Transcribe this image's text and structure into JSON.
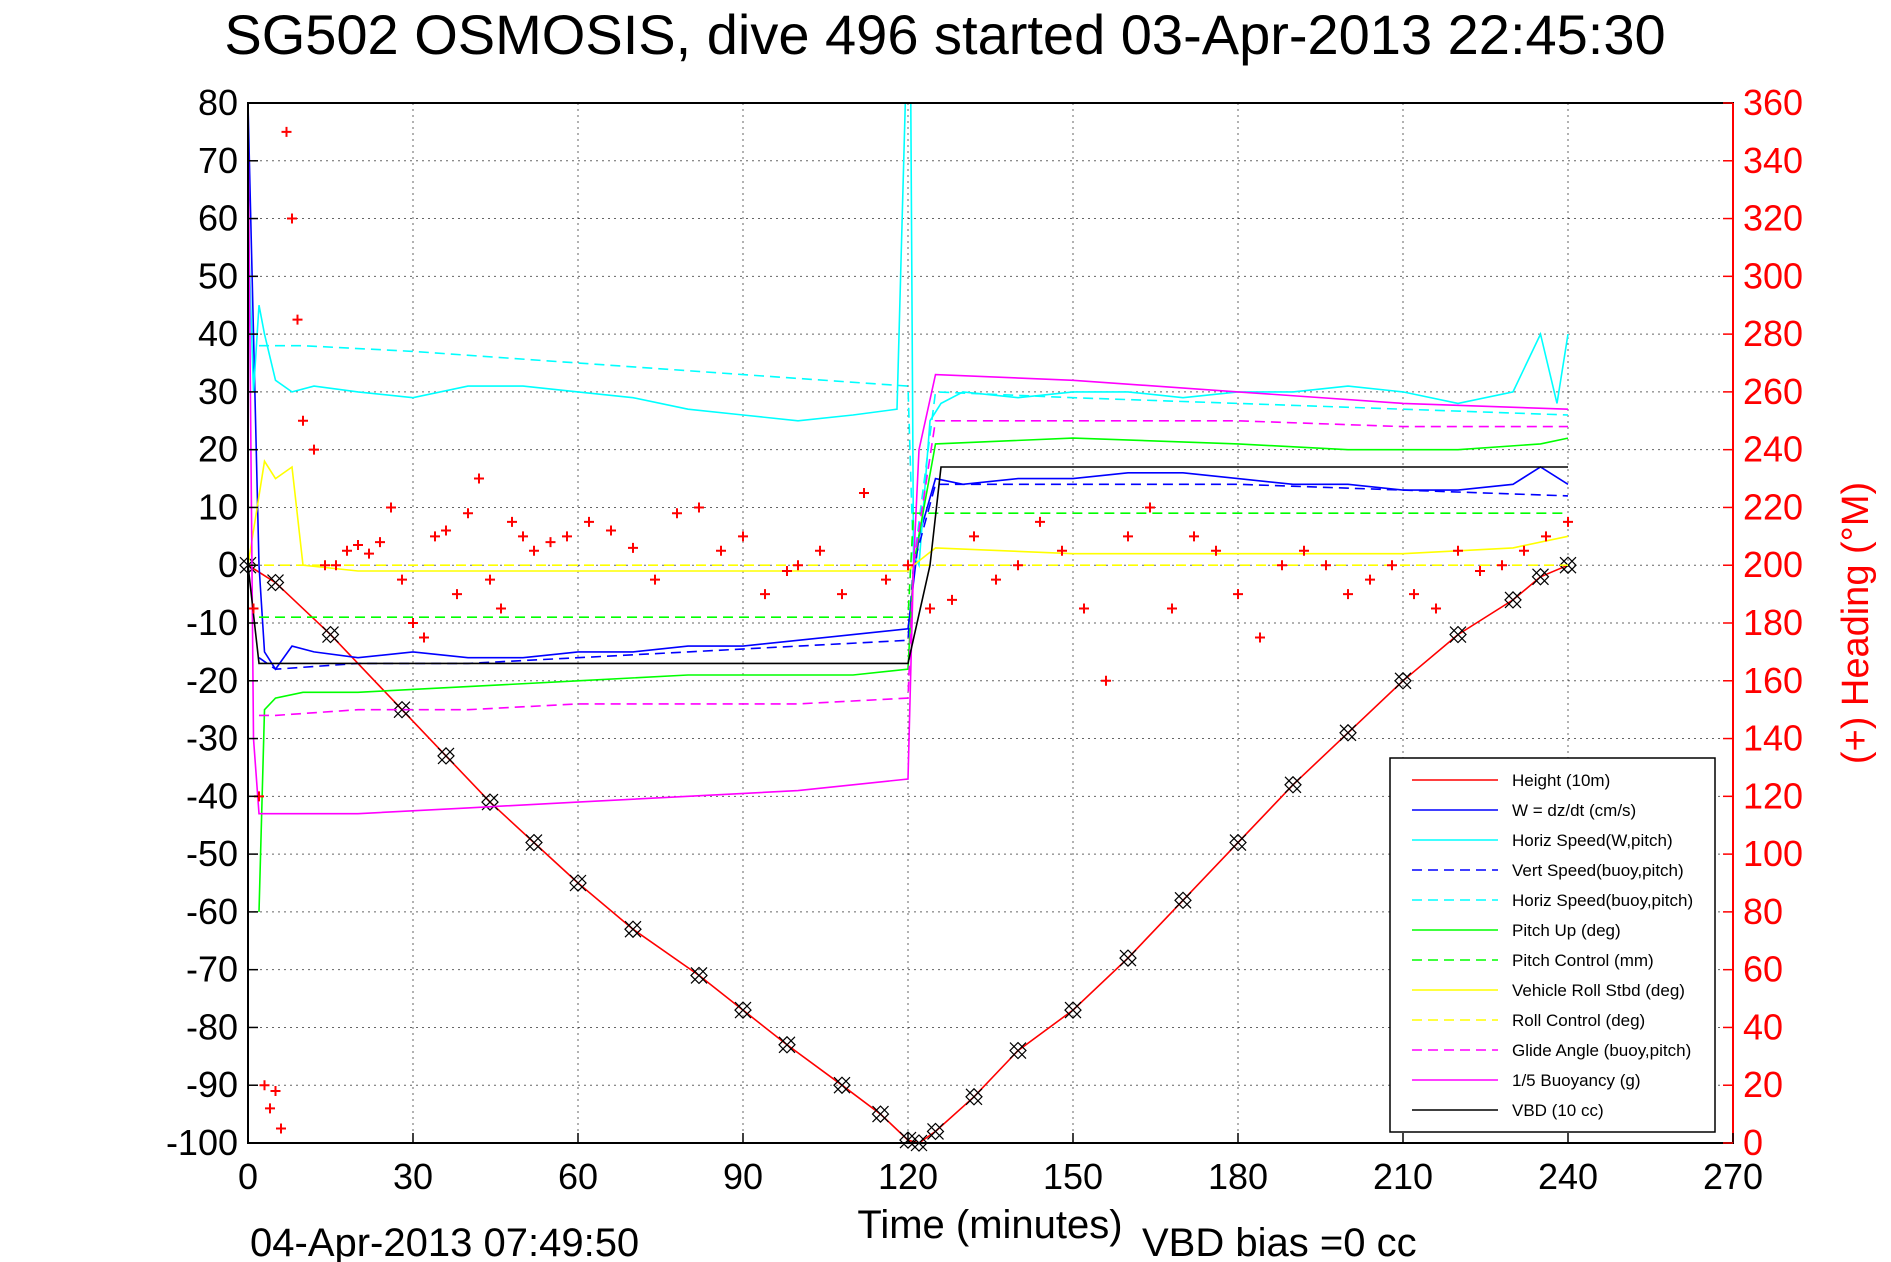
{
  "chart_data": {
    "type": "line",
    "title": "SG502 OSMOSIS, dive 496 started 03-Apr-2013 22:45:30",
    "xlabel": "Time (minutes)",
    "ylabel": "",
    "y2label": "(+) Heading (°M)",
    "xlim": [
      0,
      270
    ],
    "ylim": [
      -100,
      80
    ],
    "y2lim": [
      0,
      360
    ],
    "x_ticks": [
      "0",
      "30",
      "60",
      "90",
      "120",
      "150",
      "180",
      "210",
      "240",
      "270"
    ],
    "y_ticks": [
      "80",
      "70",
      "60",
      "50",
      "40",
      "30",
      "20",
      "10",
      "0",
      "-10",
      "-20",
      "-30",
      "-40",
      "-50",
      "-60",
      "-70",
      "-80",
      "-90",
      "-100"
    ],
    "y2_ticks": [
      "360",
      "340",
      "320",
      "300",
      "280",
      "260",
      "240",
      "220",
      "200",
      "180",
      "160",
      "140",
      "120",
      "100",
      "80",
      "60",
      "40",
      "20",
      "0"
    ],
    "grid": true,
    "legend_position": "bottom-right",
    "footer_left": "04-Apr-2013 07:49:50",
    "footer_right": "VBD bias =0 cc",
    "colors": {
      "red": "#ff0000",
      "blue": "#0000ff",
      "cyan": "#00ffff",
      "green": "#00ff00",
      "yellow": "#ffff00",
      "magenta": "#ff00ff",
      "black": "#000000"
    },
    "series": [
      {
        "name": "Height (10m)",
        "color": "#ff0000",
        "style": "solid",
        "x": [
          0,
          5,
          15,
          28,
          36,
          44,
          52,
          60,
          70,
          82,
          90,
          98,
          108,
          115,
          120,
          122,
          125,
          132,
          140,
          150,
          160,
          170,
          180,
          190,
          200,
          210,
          220,
          230,
          235,
          240
        ],
        "y": [
          0,
          -3,
          -12,
          -25,
          -33,
          -41,
          -48,
          -55,
          -63,
          -71,
          -77,
          -83,
          -90,
          -95,
          -99.5,
          -100,
          -98,
          -92,
          -84,
          -77,
          -68,
          -58,
          -48,
          -38,
          -29,
          -20,
          -12,
          -6,
          -2,
          0
        ]
      },
      {
        "name": "W = dz/dt (cm/s)",
        "color": "#0000ff",
        "style": "solid",
        "x": [
          0,
          1,
          2,
          3,
          5,
          8,
          12,
          20,
          30,
          40,
          50,
          60,
          70,
          80,
          90,
          100,
          110,
          120,
          122,
          125,
          130,
          140,
          150,
          160,
          170,
          180,
          190,
          200,
          210,
          220,
          230,
          235,
          240
        ],
        "y": [
          80,
          40,
          0,
          -15,
          -18,
          -14,
          -15,
          -16,
          -15,
          -16,
          -16,
          -15,
          -15,
          -14,
          -14,
          -13,
          -12,
          -11,
          5,
          15,
          14,
          15,
          15,
          16,
          16,
          15,
          14,
          14,
          13,
          13,
          14,
          17,
          14
        ]
      },
      {
        "name": "Horiz Speed(W,pitch)",
        "color": "#00ffff",
        "style": "solid",
        "x": [
          0,
          1,
          2,
          3,
          5,
          8,
          12,
          20,
          30,
          40,
          50,
          60,
          70,
          80,
          90,
          100,
          110,
          118,
          119.5,
          120.5,
          121,
          122,
          124,
          126,
          130,
          140,
          150,
          160,
          170,
          180,
          190,
          200,
          210,
          220,
          230,
          235,
          238,
          240
        ],
        "y": [
          60,
          30,
          45,
          40,
          32,
          30,
          31,
          30,
          29,
          31,
          31,
          30,
          29,
          27,
          26,
          25,
          26,
          27,
          80,
          80,
          2,
          0,
          25,
          28,
          30,
          29,
          30,
          30,
          29,
          30,
          30,
          31,
          30,
          28,
          30,
          40,
          28,
          40
        ]
      },
      {
        "name": "Vert Speed(buoy,pitch)",
        "color": "#0000ff",
        "style": "dashed",
        "x": [
          2,
          5,
          20,
          40,
          60,
          80,
          100,
          120,
          121,
          125,
          150,
          180,
          210,
          240
        ],
        "y": [
          -16,
          -18,
          -17,
          -17,
          -16,
          -15,
          -14,
          -13,
          0,
          14,
          14,
          14,
          13,
          12
        ]
      },
      {
        "name": "Horiz Speed(buoy,pitch)",
        "color": "#00ffff",
        "style": "dashed",
        "x": [
          2,
          10,
          30,
          60,
          90,
          120,
          121,
          125,
          150,
          180,
          210,
          240
        ],
        "y": [
          38,
          38,
          37,
          35,
          33,
          31,
          0,
          30,
          29,
          28,
          27,
          26
        ]
      },
      {
        "name": "Pitch Up (deg)",
        "color": "#00ff00",
        "style": "solid",
        "x": [
          2,
          3,
          5,
          10,
          20,
          40,
          60,
          80,
          100,
          110,
          120,
          121,
          125,
          150,
          180,
          200,
          220,
          235,
          240
        ],
        "y": [
          -60,
          -25,
          -23,
          -22,
          -22,
          -21,
          -20,
          -19,
          -19,
          -19,
          -18,
          0,
          21,
          22,
          21,
          20,
          20,
          21,
          22
        ]
      },
      {
        "name": "Pitch Control (mm)",
        "color": "#00ff00",
        "style": "dashed",
        "x": [
          2,
          5,
          20,
          40,
          60,
          80,
          100,
          120,
          121,
          125,
          150,
          180,
          210,
          240
        ],
        "y": [
          -9,
          -9,
          -9,
          -9,
          -9,
          -9,
          -9,
          -9,
          9,
          9,
          9,
          9,
          9,
          9
        ]
      },
      {
        "name": "Vehicle Roll Stbd (deg)",
        "color": "#ffff00",
        "style": "solid",
        "x": [
          0,
          3,
          5,
          8,
          10,
          20,
          40,
          60,
          80,
          100,
          120,
          121,
          125,
          150,
          180,
          210,
          230,
          240
        ],
        "y": [
          0,
          18,
          15,
          17,
          0,
          -1,
          -1,
          -1,
          -1,
          -1,
          -1,
          0,
          3,
          2,
          2,
          2,
          3,
          5
        ]
      },
      {
        "name": "Roll Control (deg)",
        "color": "#ffff00",
        "style": "dashed",
        "x": [
          0,
          240
        ],
        "y": [
          0,
          0
        ]
      },
      {
        "name": "Glide Angle (buoy,pitch)",
        "color": "#ff00ff",
        "style": "dashed",
        "x": [
          2,
          5,
          20,
          40,
          60,
          80,
          100,
          120,
          121,
          125,
          150,
          180,
          210,
          240
        ],
        "y": [
          -26,
          -26,
          -25,
          -25,
          -24,
          -24,
          -24,
          -23,
          0,
          25,
          25,
          25,
          24,
          24
        ]
      },
      {
        "name": "1/5 Buoyancy (g)",
        "color": "#ff00ff",
        "style": "solid",
        "x": [
          0,
          1,
          2,
          3,
          5,
          20,
          40,
          60,
          80,
          100,
          120,
          121,
          122,
          125,
          150,
          180,
          210,
          240
        ],
        "y": [
          77,
          -30,
          -43,
          -43,
          -43,
          -43,
          -42,
          -41,
          -40,
          -39,
          -37,
          0,
          20,
          33,
          32,
          30,
          28,
          27
        ]
      },
      {
        "name": "VBD (10 cc)",
        "color": "#000000",
        "style": "solid",
        "x": [
          0,
          2,
          15,
          120,
          124,
          126,
          240
        ],
        "y": [
          0,
          -17,
          -17,
          -17,
          0,
          17,
          17
        ]
      },
      {
        "name": "Heading",
        "color": "#ff0000",
        "style": "markers",
        "axis": "right",
        "x": [
          1,
          2,
          3,
          4,
          5,
          6,
          7,
          8,
          9,
          10,
          12,
          14,
          16,
          18,
          20,
          22,
          24,
          26,
          28,
          30,
          32,
          34,
          36,
          38,
          40,
          42,
          44,
          46,
          48,
          50,
          52,
          55,
          58,
          62,
          66,
          70,
          74,
          78,
          82,
          86,
          90,
          94,
          98,
          100,
          104,
          108,
          112,
          116,
          120,
          124,
          128,
          132,
          136,
          140,
          144,
          148,
          152,
          156,
          160,
          164,
          168,
          172,
          176,
          180,
          184,
          188,
          192,
          196,
          200,
          204,
          208,
          212,
          216,
          220,
          224,
          228,
          232,
          236,
          240
        ],
        "y": [
          185,
          120,
          20,
          12,
          18,
          5,
          350,
          320,
          285,
          250,
          240,
          200,
          200,
          205,
          207,
          204,
          208,
          220,
          195,
          180,
          175,
          210,
          212,
          190,
          218,
          230,
          195,
          185,
          215,
          210,
          205,
          208,
          210,
          215,
          212,
          206,
          195,
          218,
          220,
          205,
          210,
          190,
          198,
          200,
          205,
          190,
          225,
          195,
          200,
          185,
          188,
          210,
          195,
          200,
          215,
          205,
          185,
          160,
          210,
          220,
          185,
          210,
          205,
          190,
          175,
          200,
          205,
          200,
          190,
          195,
          200,
          190,
          185,
          205,
          198,
          200,
          205,
          210,
          215
        ]
      }
    ]
  }
}
